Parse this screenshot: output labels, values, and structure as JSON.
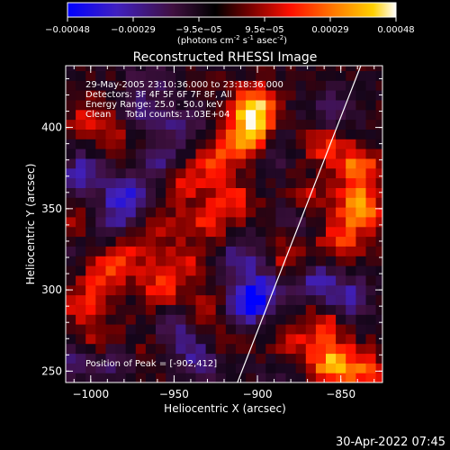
{
  "chart_data": {
    "type": "heatmap",
    "title": "Reconstructed RHESSI Image",
    "xlabel": "Heliocentric X (arcsec)",
    "ylabel": "Heliocentric Y (arcsec)",
    "xlim": [
      -1015,
      -825
    ],
    "ylim": [
      243,
      438
    ],
    "xticks": [
      -1000,
      -950,
      -900,
      -850
    ],
    "yticks": [
      250,
      300,
      350,
      400
    ],
    "colorbar": {
      "ticks": [
        "-0.00048",
        "-0.00029",
        "-9.5e-05",
        "9.5e-05",
        "0.00029",
        "0.00048"
      ],
      "units_prefix": "(photons cm",
      "units_sup1": "-2",
      "units_mid": " s",
      "units_sup2": "-1",
      "units_suffix": " asec",
      "units_sup3": "-2",
      "units_end": ")",
      "range": [
        -0.00048,
        0.00048
      ],
      "colors": [
        "#0000ff",
        "#5020a0",
        "#301030",
        "#000000",
        "#800000",
        "#ff2000",
        "#ff8000",
        "#ffd000",
        "#ffffff"
      ]
    },
    "annotations": [
      "29-May-2005 23:10:36.000 to 23:18:36.000",
      "Detectors: 3F 4F 5F 6F 7F 8F, All",
      "Energy Range: 25.0 - 50.0 keV",
      "Clean     Total counts: 1.03E+04"
    ],
    "peak_label": "Position of Peak = [-902,412]",
    "peak": [
      -902,
      412
    ],
    "limb_line": [
      [
        -912,
        243
      ],
      [
        -838,
        438
      ]
    ],
    "hotspots": [
      {
        "x": -902,
        "y": 412,
        "v": 0.00048
      },
      {
        "x": -905,
        "y": 395,
        "v": 0.0004
      },
      {
        "x": -925,
        "y": 380,
        "v": 0.00026
      },
      {
        "x": -945,
        "y": 365,
        "v": 0.0002
      },
      {
        "x": -915,
        "y": 355,
        "v": 0.00022
      },
      {
        "x": -930,
        "y": 340,
        "v": 0.00018
      },
      {
        "x": -958,
        "y": 338,
        "v": 0.00016
      },
      {
        "x": -975,
        "y": 322,
        "v": 0.00017
      },
      {
        "x": -992,
        "y": 312,
        "v": 0.00022
      },
      {
        "x": -1005,
        "y": 292,
        "v": 0.0002
      },
      {
        "x": -995,
        "y": 270,
        "v": 0.00018
      },
      {
        "x": -960,
        "y": 300,
        "v": 0.00022
      },
      {
        "x": -942,
        "y": 315,
        "v": 0.00018
      },
      {
        "x": -932,
        "y": 288,
        "v": 0.00015
      },
      {
        "x": -920,
        "y": 270,
        "v": 0.00012
      },
      {
        "x": -1000,
        "y": 405,
        "v": 0.00018
      },
      {
        "x": -985,
        "y": 392,
        "v": 0.00012
      },
      {
        "x": -860,
        "y": 390,
        "v": 0.00022
      },
      {
        "x": -840,
        "y": 375,
        "v": 0.00035
      },
      {
        "x": -838,
        "y": 350,
        "v": 0.00042
      },
      {
        "x": -850,
        "y": 330,
        "v": 0.00025
      },
      {
        "x": -870,
        "y": 355,
        "v": 0.00022
      },
      {
        "x": -880,
        "y": 320,
        "v": 0.0002
      },
      {
        "x": -860,
        "y": 280,
        "v": 0.00022
      },
      {
        "x": -855,
        "y": 255,
        "v": 0.0004
      },
      {
        "x": -835,
        "y": 250,
        "v": 0.00025
      },
      {
        "x": -880,
        "y": 265,
        "v": 0.00018
      },
      {
        "x": -895,
        "y": 290,
        "v": 0.00012
      },
      {
        "x": -1010,
        "y": 340,
        "v": 0.00014
      },
      {
        "x": -968,
        "y": 262,
        "v": 0.0001
      }
    ],
    "coldspots": [
      {
        "x": -1005,
        "y": 372,
        "v": -0.00028
      },
      {
        "x": -978,
        "y": 358,
        "v": -0.0003
      },
      {
        "x": -960,
        "y": 378,
        "v": -0.00022
      },
      {
        "x": -985,
        "y": 345,
        "v": -0.00018
      },
      {
        "x": -945,
        "y": 400,
        "v": -0.0002
      },
      {
        "x": -970,
        "y": 410,
        "v": -0.00016
      },
      {
        "x": -905,
        "y": 290,
        "v": -0.00045
      },
      {
        "x": -895,
        "y": 300,
        "v": -0.0003
      },
      {
        "x": -910,
        "y": 320,
        "v": -0.00024
      },
      {
        "x": -935,
        "y": 258,
        "v": -0.00025
      },
      {
        "x": -950,
        "y": 275,
        "v": -0.0002
      },
      {
        "x": -865,
        "y": 305,
        "v": -0.0003
      },
      {
        "x": -845,
        "y": 295,
        "v": -0.00028
      },
      {
        "x": -875,
        "y": 345,
        "v": -0.00018
      },
      {
        "x": -855,
        "y": 410,
        "v": -0.00022
      },
      {
        "x": -890,
        "y": 385,
        "v": -0.00016
      },
      {
        "x": -1010,
        "y": 255,
        "v": -0.00018
      },
      {
        "x": -985,
        "y": 258,
        "v": -0.0002
      },
      {
        "x": -1008,
        "y": 322,
        "v": -0.0001
      },
      {
        "x": -965,
        "y": 430,
        "v": -0.00015
      },
      {
        "x": -885,
        "y": 250,
        "v": -0.00012
      }
    ]
  },
  "timestamp": "30-Apr-2022 07:45"
}
